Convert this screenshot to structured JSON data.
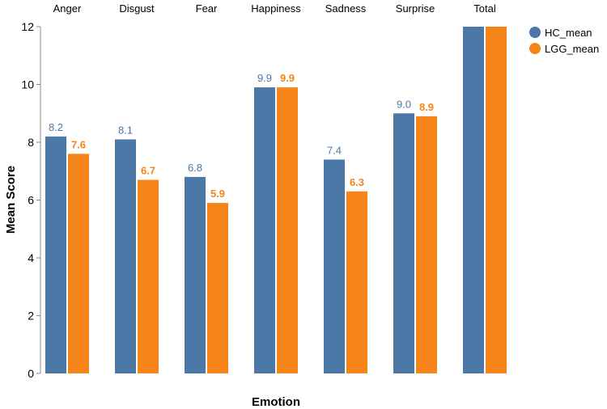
{
  "chart_data": {
    "type": "bar",
    "title": "",
    "xlabel": "Emotion",
    "ylabel": "Mean Score",
    "categories": [
      "Anger",
      "Disgust",
      "Fear",
      "Happiness",
      "Sadness",
      "Surprise",
      "Total"
    ],
    "series": [
      {
        "name": "HC_mean",
        "color": "#4c78a8",
        "values": [
          8.2,
          8.1,
          6.8,
          9.9,
          7.4,
          9.0,
          12
        ],
        "labels": [
          "8.2",
          "8.1",
          "6.8",
          "9.9",
          "7.4",
          "9.0",
          ""
        ]
      },
      {
        "name": "LGG_mean",
        "color": "#f58518",
        "values": [
          7.6,
          6.7,
          5.9,
          9.9,
          6.3,
          8.9,
          12
        ],
        "labels": [
          "7.6",
          "6.7",
          "5.9",
          "9.9",
          "6.3",
          "8.9",
          ""
        ]
      }
    ],
    "ylim": [
      0,
      12
    ],
    "yticks": [
      0,
      2,
      4,
      6,
      8,
      10,
      12
    ],
    "ytick_labels": [
      "0",
      "2",
      "4",
      "6",
      "8",
      "10",
      "12"
    ],
    "grid": false,
    "legend_position": "top-right",
    "category_labels_position": "top"
  }
}
